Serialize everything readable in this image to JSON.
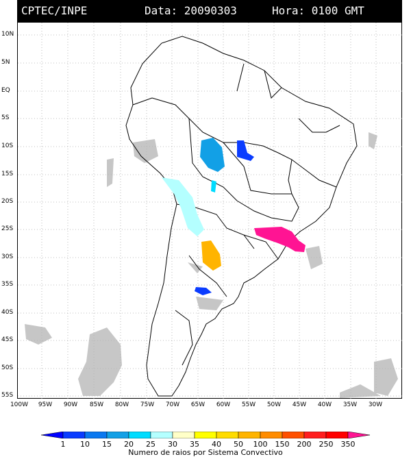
{
  "header": {
    "source": "CPTEC/INPE",
    "date_text": "Data: 20090303",
    "hour_text": "Hora: 0100 GMT"
  },
  "lat_labels": [
    "10N",
    "5N",
    "EQ",
    "5S",
    "10S",
    "15S",
    "20S",
    "25S",
    "30S",
    "35S",
    "40S",
    "45S",
    "50S",
    "55S"
  ],
  "lon_labels": [
    "100W",
    "95W",
    "90W",
    "85W",
    "80W",
    "75W",
    "70W",
    "65W",
    "60W",
    "55W",
    "50W",
    "45W",
    "40W",
    "35W",
    "30W"
  ],
  "legend": {
    "title": "Numero de raios por Sistema Convectivo",
    "values": [
      "1",
      "10",
      "15",
      "20",
      "25",
      "30",
      "35",
      "40",
      "50",
      "100",
      "150",
      "200",
      "250",
      "350"
    ],
    "colors": [
      "#0000ff",
      "#0a3cff",
      "#0a78f0",
      "#12a0e6",
      "#00dcff",
      "#b4ffff",
      "#ffffc8",
      "#ffff00",
      "#ffdc00",
      "#ffb400",
      "#ff8c00",
      "#ff5000",
      "#ff1e1e",
      "#ff0000",
      "#ff1493"
    ]
  },
  "clusters": [
    {
      "name": "cyan-cluster-rondonia",
      "color": "#12a0e6"
    },
    {
      "name": "blue-cluster-mato-grosso",
      "color": "#0a3cff"
    },
    {
      "name": "light-cyan-cluster-bolivia",
      "color": "#b4ffff"
    },
    {
      "name": "orange-cluster-argentina",
      "color": "#ffb400"
    },
    {
      "name": "magenta-cluster-sao-paulo",
      "color": "#ff1493"
    },
    {
      "name": "blue-cluster-patagonia",
      "color": "#0a3cff"
    }
  ]
}
